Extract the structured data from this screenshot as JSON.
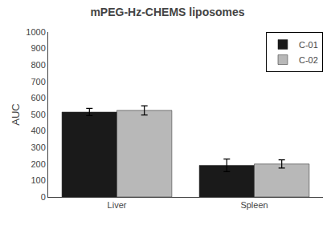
{
  "chart_data": {
    "type": "bar",
    "title": "mPEG-Hz-CHEMS liposomes",
    "ylabel": "AUC",
    "categories": [
      "Liver",
      "Spleen"
    ],
    "series": [
      {
        "name": "C-01",
        "color": "#1a1a1a",
        "values": [
          515,
          192
        ],
        "errors": [
          22,
          38
        ]
      },
      {
        "name": "C-02",
        "color": "#b8b8b8",
        "values": [
          525,
          200
        ],
        "errors": [
          28,
          25
        ]
      }
    ],
    "ylim": [
      0,
      1000
    ],
    "yticks": [
      0,
      100,
      200,
      300,
      400,
      500,
      600,
      700,
      800,
      900,
      1000
    ],
    "grid": false,
    "legend": "upper right"
  }
}
